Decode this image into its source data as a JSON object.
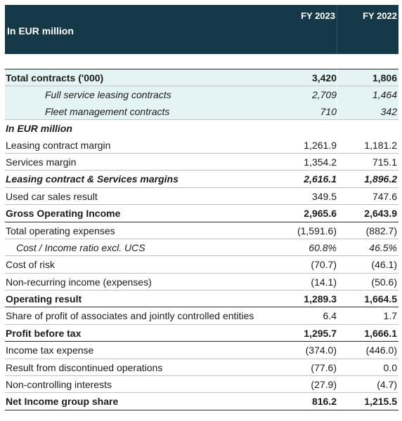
{
  "header": {
    "label": "In EUR million",
    "year1": "FY 2023",
    "year2": "FY 2022"
  },
  "rows": [
    {
      "label": "Total contracts ('000)",
      "v1": "3,420",
      "v2": "1,806",
      "style": "bold teal"
    },
    {
      "label": "Full service leasing contracts",
      "v1": "2,709",
      "v2": "1,464",
      "style": "ital teal nob",
      "indent": "ind2"
    },
    {
      "label": "Fleet management contracts",
      "v1": "710",
      "v2": "342",
      "style": "ital teal",
      "indent": "ind2"
    },
    {
      "label": "In EUR million",
      "v1": "",
      "v2": "",
      "style": "boldital nob"
    },
    {
      "label": "Leasing contract margin",
      "v1": "1,261.9",
      "v2": "1,181.2",
      "style": ""
    },
    {
      "label": "Services margin",
      "v1": "1,354.2",
      "v2": "715.1",
      "style": ""
    },
    {
      "label": "Leasing contract & Services margins",
      "v1": "2,616.1",
      "v2": "1,896.2",
      "style": "boldital"
    },
    {
      "label": "Used car sales result",
      "v1": "349.5",
      "v2": "747.6",
      "style": ""
    },
    {
      "label": "Gross Operating Income",
      "v1": "2,965.6",
      "v2": "2,643.9",
      "style": "bolddark"
    },
    {
      "label": "Total operating expenses",
      "v1": "(1,591.6)",
      "v2": "(882.7)",
      "style": ""
    },
    {
      "label": "Cost / Income ratio excl. UCS",
      "v1": "60.8%",
      "v2": "46.5%",
      "style": "ital",
      "indent": "ind1"
    },
    {
      "label": "Cost of risk",
      "v1": "(70.7)",
      "v2": "(46.1)",
      "style": ""
    },
    {
      "label": "Non-recurring income (expenses)",
      "v1": "(14.1)",
      "v2": "(50.6)",
      "style": ""
    },
    {
      "label": "Operating result",
      "v1": "1,289.3",
      "v2": "1,664.5",
      "style": "bolddark"
    },
    {
      "label": "Share of profit of associates and jointly controlled entities",
      "v1": "6.4",
      "v2": "1.7",
      "style": ""
    },
    {
      "label": "Profit before tax",
      "v1": "1,295.7",
      "v2": "1,666.1",
      "style": "bolddark"
    },
    {
      "label": "Income tax expense",
      "v1": "(374.0)",
      "v2": "(446.0)",
      "style": ""
    },
    {
      "label": "Result from discontinued operations",
      "v1": "(77.6)",
      "v2": "0.0",
      "style": ""
    },
    {
      "label": "Non-controlling interests",
      "v1": "(27.9)",
      "v2": "(4.7)",
      "style": ""
    },
    {
      "label": "Net Income group share",
      "v1": "816.2",
      "v2": "1,215.5",
      "style": "bolddark"
    }
  ]
}
